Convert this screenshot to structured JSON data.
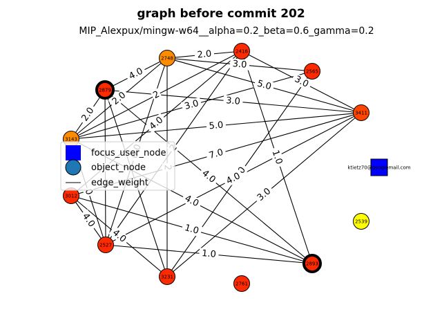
{
  "title": "graph before commit 202",
  "subtitle": "MIP_Alexpux/mingw-w64__alpha=0.2_beta=0.6_gamma=0.2",
  "legend": {
    "focus_user_node": "focus_user_node",
    "object_node": "object_node",
    "edge_weight": "edge_weight"
  },
  "colors": {
    "red": "#ff2a00",
    "orange_red": "#ff4500",
    "orange": "#ff8c00",
    "yellow": "#ffff00",
    "blue": "#0000ff",
    "legend_object": "#1f77b4"
  },
  "nodes": [
    {
      "id": "2748",
      "label": "2748",
      "color": "#ff8c00",
      "highlight": false
    },
    {
      "id": "2416",
      "label": "2416",
      "color": "#ff2a00",
      "highlight": false
    },
    {
      "id": "2565",
      "label": "2565",
      "color": "#ff2a00",
      "highlight": false
    },
    {
      "id": "2879",
      "label": "2879",
      "color": "#ff2a00",
      "highlight": true
    },
    {
      "id": "3411",
      "label": "3411",
      "color": "#ff4500",
      "highlight": false
    },
    {
      "id": "3143",
      "label": "3143",
      "color": "#ff8c00",
      "highlight": false
    },
    {
      "id": "3012",
      "label": "3012",
      "color": "#ff2a00",
      "highlight": false
    },
    {
      "id": "2527",
      "label": "2527",
      "color": "#ff2a00",
      "highlight": false
    },
    {
      "id": "2539",
      "label": "2539",
      "color": "#ffff00",
      "highlight": false
    },
    {
      "id": "2893",
      "label": "2893",
      "color": "#ff2a00",
      "highlight": true
    },
    {
      "id": "3231",
      "label": "3231",
      "color": "#ff2a00",
      "highlight": false
    },
    {
      "id": "2761",
      "label": "2761",
      "color": "#ff2a00",
      "highlight": false
    },
    {
      "id": "focus",
      "label": "ktietz70@googlemail.com",
      "shape": "square",
      "color": "#0000ff"
    }
  ],
  "edges": [
    {
      "from": "2748",
      "to": "2416",
      "label": "2.0"
    },
    {
      "from": "2748",
      "to": "2879",
      "label": "4.0"
    },
    {
      "from": "2748",
      "to": "3411",
      "label": "5.0"
    },
    {
      "from": "2748",
      "to": "3143",
      "label": "2.0"
    },
    {
      "from": "2748",
      "to": "3231",
      "label": "2"
    },
    {
      "from": "2748",
      "to": "2527",
      "label": "6.0"
    },
    {
      "from": "2748",
      "to": "2565",
      "label": "3.0"
    },
    {
      "from": "2416",
      "to": "3143",
      "label": "2"
    },
    {
      "from": "2416",
      "to": "3411",
      "label": "3.0"
    },
    {
      "from": "2416",
      "to": "2893",
      "label": "1.0"
    },
    {
      "from": "2416",
      "to": "3012",
      "label": "4.0"
    },
    {
      "from": "2416",
      "to": "2527",
      "label": "2"
    },
    {
      "from": "2565",
      "to": "3143",
      "label": "3.0"
    },
    {
      "from": "2565",
      "to": "3231",
      "label": "4.0"
    },
    {
      "from": "2879",
      "to": "3143",
      "label": "2.0"
    },
    {
      "from": "2879",
      "to": "2893",
      "label": "4.0"
    },
    {
      "from": "2879",
      "to": "3411",
      "label": "3.0"
    },
    {
      "from": "2879",
      "to": "3231",
      "label": "2"
    },
    {
      "from": "2879",
      "to": "2527",
      "label": "0"
    },
    {
      "from": "3411",
      "to": "3143",
      "label": "5.0"
    },
    {
      "from": "3411",
      "to": "3012",
      "label": "7.0"
    },
    {
      "from": "3411",
      "to": "3231",
      "label": "3.0"
    },
    {
      "from": "3411",
      "to": "2527",
      "label": "4.0"
    },
    {
      "from": "3143",
      "to": "2893",
      "label": "4.0"
    },
    {
      "from": "3143",
      "to": "2527",
      "label": "0"
    },
    {
      "from": "3012",
      "to": "2527",
      "label": "4.0"
    },
    {
      "from": "3012",
      "to": "2893",
      "label": "1.0"
    },
    {
      "from": "2527",
      "to": "2893",
      "label": "1.0"
    },
    {
      "from": "3012",
      "to": "3231",
      "label": "4.0"
    }
  ]
}
